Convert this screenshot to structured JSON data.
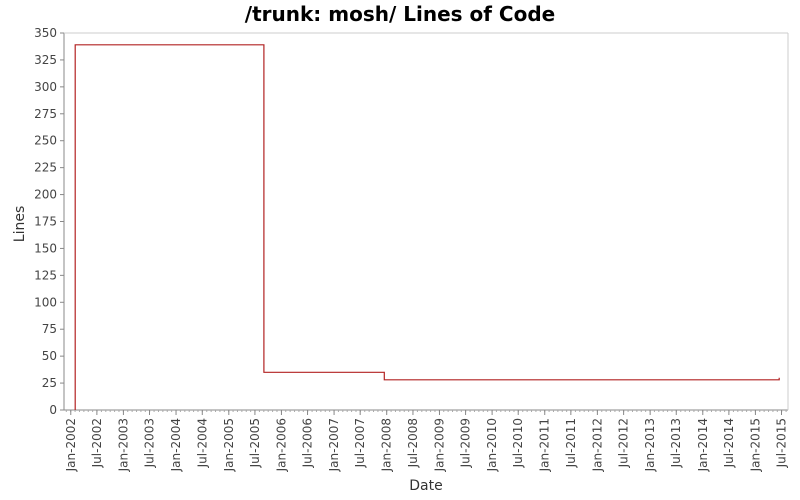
{
  "chart_data": {
    "type": "line",
    "title": "/trunk: mosh/ Lines of Code",
    "xlabel": "Date",
    "ylabel": "Lines",
    "ylim": [
      0,
      350
    ],
    "y_ticks": [
      0,
      25,
      50,
      75,
      100,
      125,
      150,
      175,
      200,
      225,
      250,
      275,
      300,
      325,
      350
    ],
    "x_ticks": [
      "Jan-2002",
      "Jul-2002",
      "Jan-2003",
      "Jul-2003",
      "Jan-2004",
      "Jul-2004",
      "Jan-2005",
      "Jul-2005",
      "Jan-2006",
      "Jul-2006",
      "Jan-2007",
      "Jul-2007",
      "Jan-2008",
      "Jul-2008",
      "Jan-2009",
      "Jul-2009",
      "Jan-2010",
      "Jul-2010",
      "Jan-2011",
      "Jul-2011",
      "Jan-2012",
      "Jul-2012",
      "Jan-2013",
      "Jul-2013",
      "Jan-2014",
      "Jul-2014",
      "Jan-2015",
      "Jul-2015"
    ],
    "xlim": [
      "2001-11-15",
      "2015-08-15"
    ],
    "grid": false,
    "line_style": "step",
    "series": [
      {
        "color": "#b22222",
        "points": [
          {
            "x": "2002-02-01",
            "y": 0
          },
          {
            "x": "2002-02-01",
            "y": 339
          },
          {
            "x": "2005-09-01",
            "y": 339
          },
          {
            "x": "2005-09-01",
            "y": 35
          },
          {
            "x": "2007-12-15",
            "y": 35
          },
          {
            "x": "2007-12-15",
            "y": 28
          },
          {
            "x": "2015-06-15",
            "y": 28
          },
          {
            "x": "2015-06-15",
            "y": 30
          }
        ]
      }
    ]
  }
}
